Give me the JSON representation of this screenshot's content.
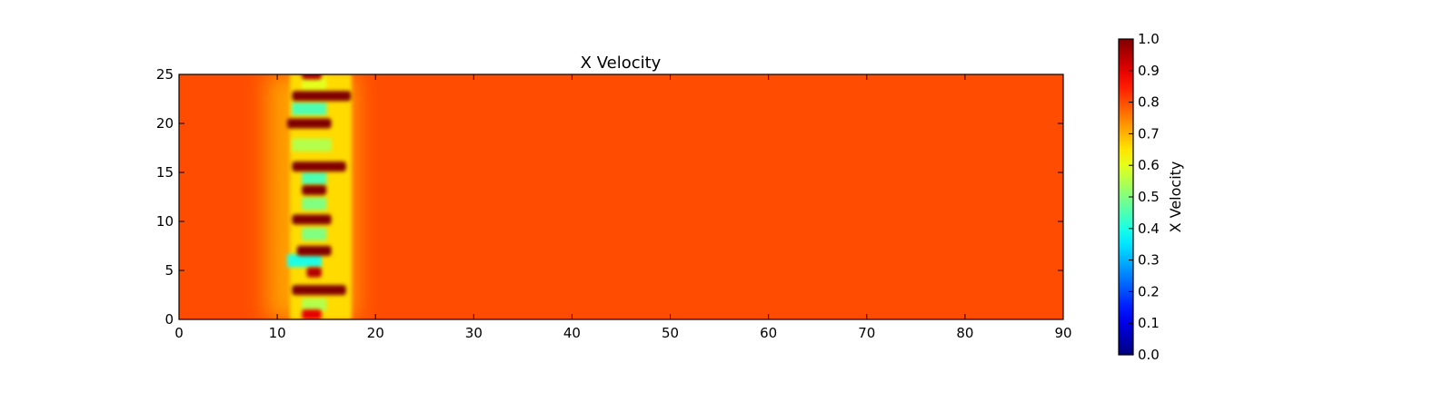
{
  "chart_data": {
    "type": "heatmap",
    "title": "X Velocity",
    "xlabel": "",
    "ylabel": "",
    "xlim": [
      0,
      90
    ],
    "ylim": [
      0,
      25
    ],
    "x_ticks": [
      0,
      10,
      20,
      30,
      40,
      50,
      60,
      70,
      80,
      90
    ],
    "y_ticks": [
      0,
      5,
      10,
      15,
      20,
      25
    ],
    "grid": false,
    "colormap": "jet",
    "background_value": 0.8,
    "colorbar": {
      "label": "X Velocity",
      "range": [
        0.0,
        1.0
      ],
      "ticks": [
        "0.0",
        "0.1",
        "0.2",
        "0.3",
        "0.4",
        "0.5",
        "0.6",
        "0.7",
        "0.8",
        "0.9",
        "1.0"
      ]
    },
    "features": {
      "wake_region_x": [
        10,
        17
      ],
      "high_velocity_bands": [
        {
          "y": 0.5,
          "x": [
            12.5,
            14.5
          ],
          "value": 0.9
        },
        {
          "y": 3.0,
          "x": [
            11.5,
            17.0
          ],
          "value": 1.0
        },
        {
          "y": 4.8,
          "x": [
            13.0,
            14.5
          ],
          "value": 0.95
        },
        {
          "y": 7.0,
          "x": [
            12.0,
            15.5
          ],
          "value": 1.0
        },
        {
          "y": 10.2,
          "x": [
            11.5,
            15.5
          ],
          "value": 1.0
        },
        {
          "y": 13.2,
          "x": [
            12.5,
            15.0
          ],
          "value": 1.0
        },
        {
          "y": 15.6,
          "x": [
            11.5,
            17.0
          ],
          "value": 1.0
        },
        {
          "y": 20.0,
          "x": [
            11.0,
            15.5
          ],
          "value": 1.0
        },
        {
          "y": 22.8,
          "x": [
            11.5,
            17.5
          ],
          "value": 1.0
        },
        {
          "y": 25.0,
          "x": [
            12.5,
            14.5
          ],
          "value": 0.95
        }
      ],
      "low_velocity_bands": [
        {
          "y": 1.5,
          "x": [
            12.5,
            15.0
          ],
          "value": 0.55
        },
        {
          "y": 6.0,
          "x": [
            11.0,
            14.5
          ],
          "value": 0.4
        },
        {
          "y": 8.7,
          "x": [
            12.5,
            15.0
          ],
          "value": 0.5
        },
        {
          "y": 11.8,
          "x": [
            12.5,
            15.0
          ],
          "value": 0.5
        },
        {
          "y": 14.4,
          "x": [
            12.5,
            15.0
          ],
          "value": 0.45
        },
        {
          "y": 17.8,
          "x": [
            11.5,
            15.5
          ],
          "value": 0.55
        },
        {
          "y": 21.5,
          "x": [
            11.5,
            15.0
          ],
          "value": 0.45
        },
        {
          "y": 24.0,
          "x": [
            12.5,
            15.0
          ],
          "value": 0.6
        }
      ]
    }
  }
}
